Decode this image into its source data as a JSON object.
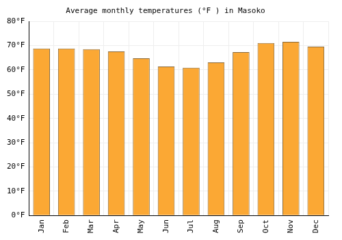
{
  "chart_data": {
    "type": "bar",
    "title": "Average monthly temperatures (°F ) in Masoko",
    "categories": [
      "Jan",
      "Feb",
      "Mar",
      "Apr",
      "May",
      "Jun",
      "Jul",
      "Aug",
      "Sep",
      "Oct",
      "Nov",
      "Dec"
    ],
    "values": [
      68.8,
      68.8,
      68.5,
      67.6,
      64.8,
      61.4,
      60.9,
      63.1,
      67.3,
      71.1,
      71.6,
      69.6
    ],
    "color": "#fba834",
    "ylim": [
      0,
      80
    ],
    "yticks": [
      {
        "value": 0,
        "label": "0°F"
      },
      {
        "value": 10,
        "label": "10°F"
      },
      {
        "value": 20,
        "label": "20°F"
      },
      {
        "value": 30,
        "label": "30°F"
      },
      {
        "value": 40,
        "label": "40°F"
      },
      {
        "value": 50,
        "label": "50°F"
      },
      {
        "value": 60,
        "label": "60°F"
      },
      {
        "value": 70,
        "label": "70°F"
      },
      {
        "value": 80,
        "label": "80°F"
      }
    ],
    "grid": true
  }
}
